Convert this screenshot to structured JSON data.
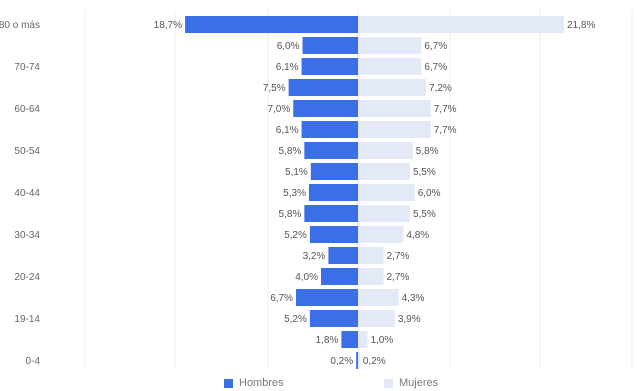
{
  "chart_data": {
    "type": "bar",
    "orientation": "horizontal-diverging",
    "age_labels": [
      "80 o más",
      "",
      "70-74",
      "",
      "60-64",
      "",
      "50-54",
      "",
      "40-44",
      "",
      "30-34",
      "",
      "20-24",
      "",
      "19-14",
      "",
      "0-4"
    ],
    "series": [
      {
        "name": "Hombres",
        "color": "#3b6fe8",
        "values": [
          18.7,
          6.0,
          6.1,
          7.5,
          7.0,
          6.1,
          5.8,
          5.1,
          5.3,
          5.8,
          5.2,
          3.2,
          4.0,
          6.7,
          5.2,
          1.8,
          0.2
        ],
        "labels": [
          "18,7%",
          "6,0%",
          "6,1%",
          "7,5%",
          "7,0%",
          "6,1%",
          "5,8%",
          "5,1%",
          "5,3%",
          "5,8%",
          "5,2%",
          "3,2%",
          "4,0%",
          "6,7%",
          "5,2%",
          "1,8%",
          "0,2%"
        ]
      },
      {
        "name": "Mujeres",
        "color": "#e3e9f6",
        "values": [
          21.8,
          6.7,
          6.7,
          7.2,
          7.7,
          7.7,
          5.8,
          5.5,
          6.0,
          5.5,
          4.8,
          2.7,
          2.7,
          4.3,
          3.9,
          1.0,
          0.2
        ],
        "labels": [
          "21,8%",
          "6,7%",
          "6,7%",
          "7,2%",
          "7,7%",
          "7,7%",
          "5,8%",
          "5,5%",
          "6,0%",
          "5,5%",
          "4,8%",
          "2,7%",
          "2,7%",
          "4,3%",
          "3,9%",
          "1,0%",
          "0,2%"
        ]
      }
    ],
    "grid": true,
    "legend_position": "bottom"
  },
  "legend": {
    "hombres": "Hombres",
    "mujeres": "Mujeres"
  }
}
